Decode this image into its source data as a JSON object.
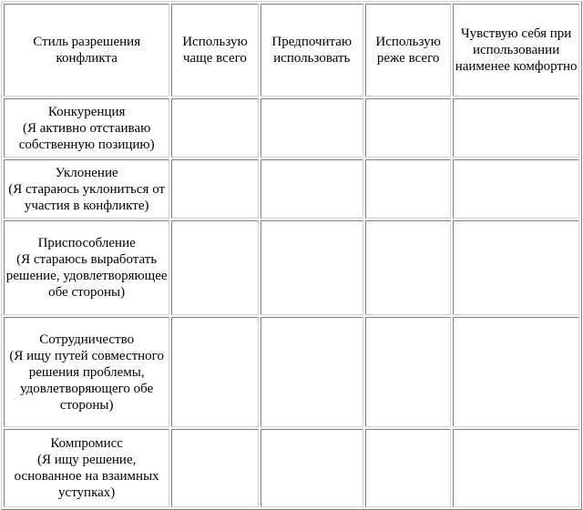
{
  "headers": [
    "Стиль разрешения конфликта",
    "Использую чаще всего",
    "Предпочитаю использовать",
    "Использую реже всего",
    "Чувствую себя при использовании наименее комфортно"
  ],
  "rows": [
    {
      "style": "Конкуренция",
      "desc": "(Я активно отстаиваю собственную позицию)"
    },
    {
      "style": "Уклонение",
      "desc": "(Я стараюсь уклониться от участия в конфликте)"
    },
    {
      "style": "Приспособление",
      "desc": "(Я стараюсь выработать решение, удовлетворяющее обе стороны)"
    },
    {
      "style": "Сотрудничество",
      "desc": "(Я ищу путей совместного решения проблемы, удовлетворяющего обе стороны)"
    },
    {
      "style": "Компромисс",
      "desc": "(Я ищу решение, основанное на взаимных уступках)"
    }
  ]
}
